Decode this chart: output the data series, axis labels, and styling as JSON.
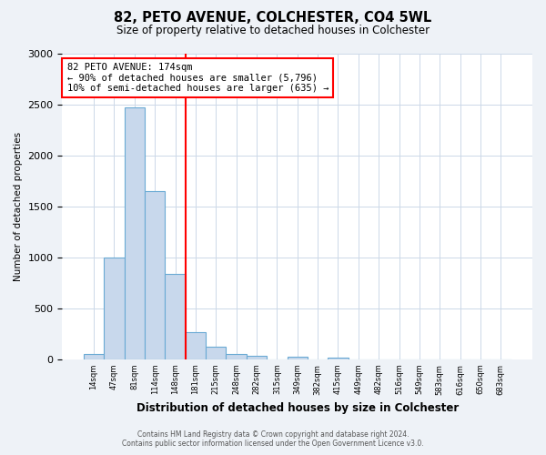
{
  "title": "82, PETO AVENUE, COLCHESTER, CO4 5WL",
  "subtitle": "Size of property relative to detached houses in Colchester",
  "xlabel": "Distribution of detached houses by size in Colchester",
  "ylabel": "Number of detached properties",
  "bar_labels": [
    "14sqm",
    "47sqm",
    "81sqm",
    "114sqm",
    "148sqm",
    "181sqm",
    "215sqm",
    "248sqm",
    "282sqm",
    "315sqm",
    "349sqm",
    "382sqm",
    "415sqm",
    "449sqm",
    "482sqm",
    "516sqm",
    "549sqm",
    "583sqm",
    "616sqm",
    "650sqm",
    "683sqm"
  ],
  "bar_values": [
    55,
    1000,
    2470,
    1650,
    840,
    270,
    125,
    50,
    35,
    0,
    25,
    0,
    12,
    0,
    0,
    0,
    0,
    0,
    0,
    0,
    0
  ],
  "bar_color": "#c8d8ec",
  "bar_edge_color": "#6aaad4",
  "property_line_color": "red",
  "annotation_title": "82 PETO AVENUE: 174sqm",
  "annotation_line1": "← 90% of detached houses are smaller (5,796)",
  "annotation_line2": "10% of semi-detached houses are larger (635) →",
  "ylim": [
    0,
    3000
  ],
  "yticks": [
    0,
    500,
    1000,
    1500,
    2000,
    2500,
    3000
  ],
  "footer_line1": "Contains HM Land Registry data © Crown copyright and database right 2024.",
  "footer_line2": "Contains public sector information licensed under the Open Government Licence v3.0.",
  "bg_color": "#eef2f7",
  "plot_bg_color": "#ffffff",
  "grid_color": "#ccd8e8"
}
